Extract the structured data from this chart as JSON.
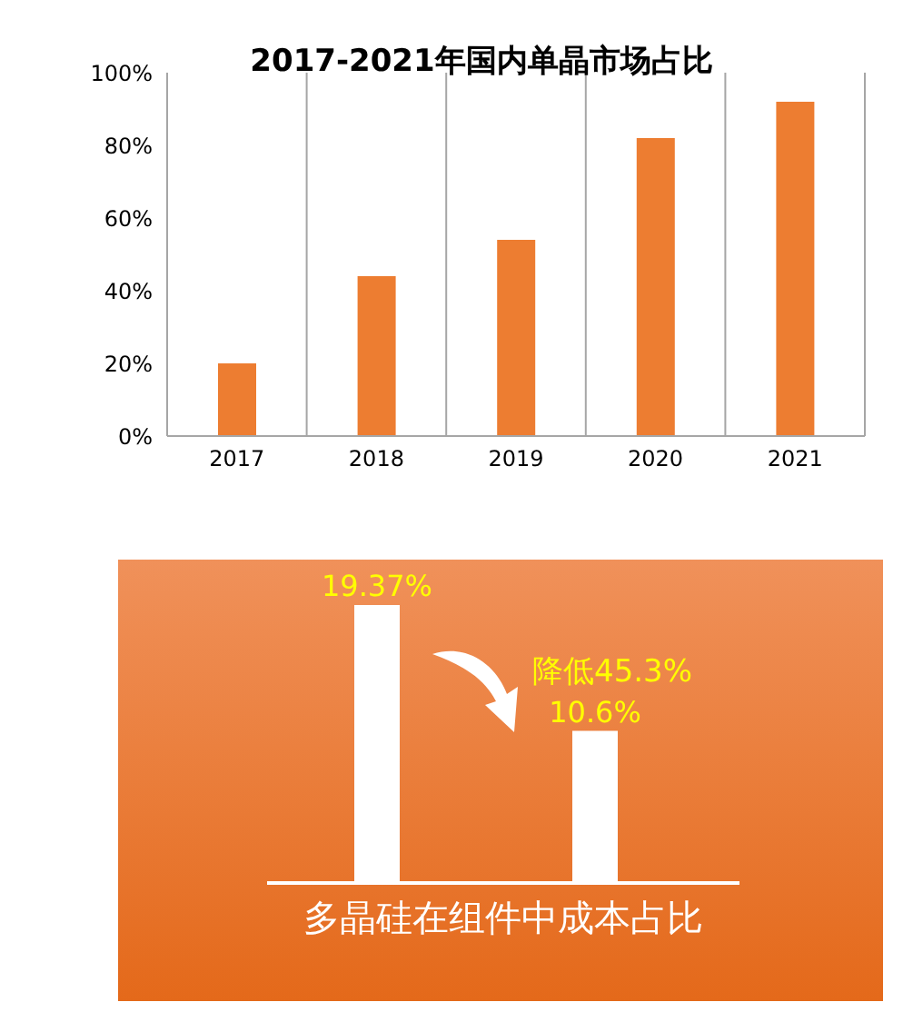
{
  "chart_data": [
    {
      "type": "bar",
      "title": "2017-2021年国内单晶市场占比",
      "categories": [
        "2017",
        "2018",
        "2019",
        "2020",
        "2021"
      ],
      "values": [
        20,
        44,
        54,
        82,
        92
      ],
      "color": "#ed7d31",
      "ylim": [
        0,
        100
      ],
      "yticks": [
        {
          "value": 0,
          "label": "0%"
        },
        {
          "value": 20,
          "label": "20%"
        },
        {
          "value": 40,
          "label": "40%"
        },
        {
          "value": 60,
          "label": "60%"
        },
        {
          "value": 80,
          "label": "80%"
        },
        {
          "value": 100,
          "label": "100%"
        }
      ],
      "grid": "x"
    },
    {
      "type": "bar",
      "xlabel": "多晶硅在组件中成本占比",
      "categories": [
        null,
        null
      ],
      "values": [
        19.37,
        10.6
      ],
      "color": "#ffffff",
      "value_labels": [
        "19.37%",
        "10.6%"
      ],
      "annotations": [
        "降低45.3%"
      ]
    }
  ]
}
